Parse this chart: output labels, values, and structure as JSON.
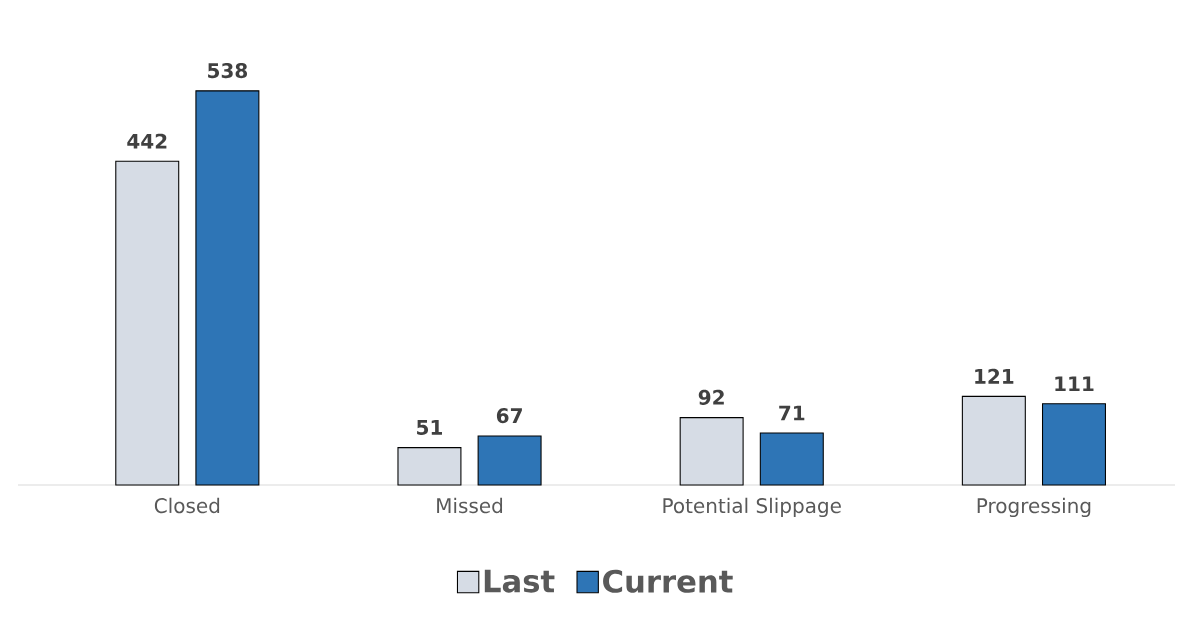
{
  "chart_data": {
    "type": "bar",
    "categories": [
      "Closed",
      "Missed",
      "Potential Slippage",
      "Progressing"
    ],
    "series": [
      {
        "name": "Last",
        "color": "#d6dce5",
        "values": [
          442,
          51,
          92,
          121
        ]
      },
      {
        "name": "Current",
        "color": "#2e75b6",
        "values": [
          538,
          67,
          71,
          111
        ]
      }
    ],
    "data_labels": true,
    "legend": "bottom",
    "tick_labels": "x"
  }
}
